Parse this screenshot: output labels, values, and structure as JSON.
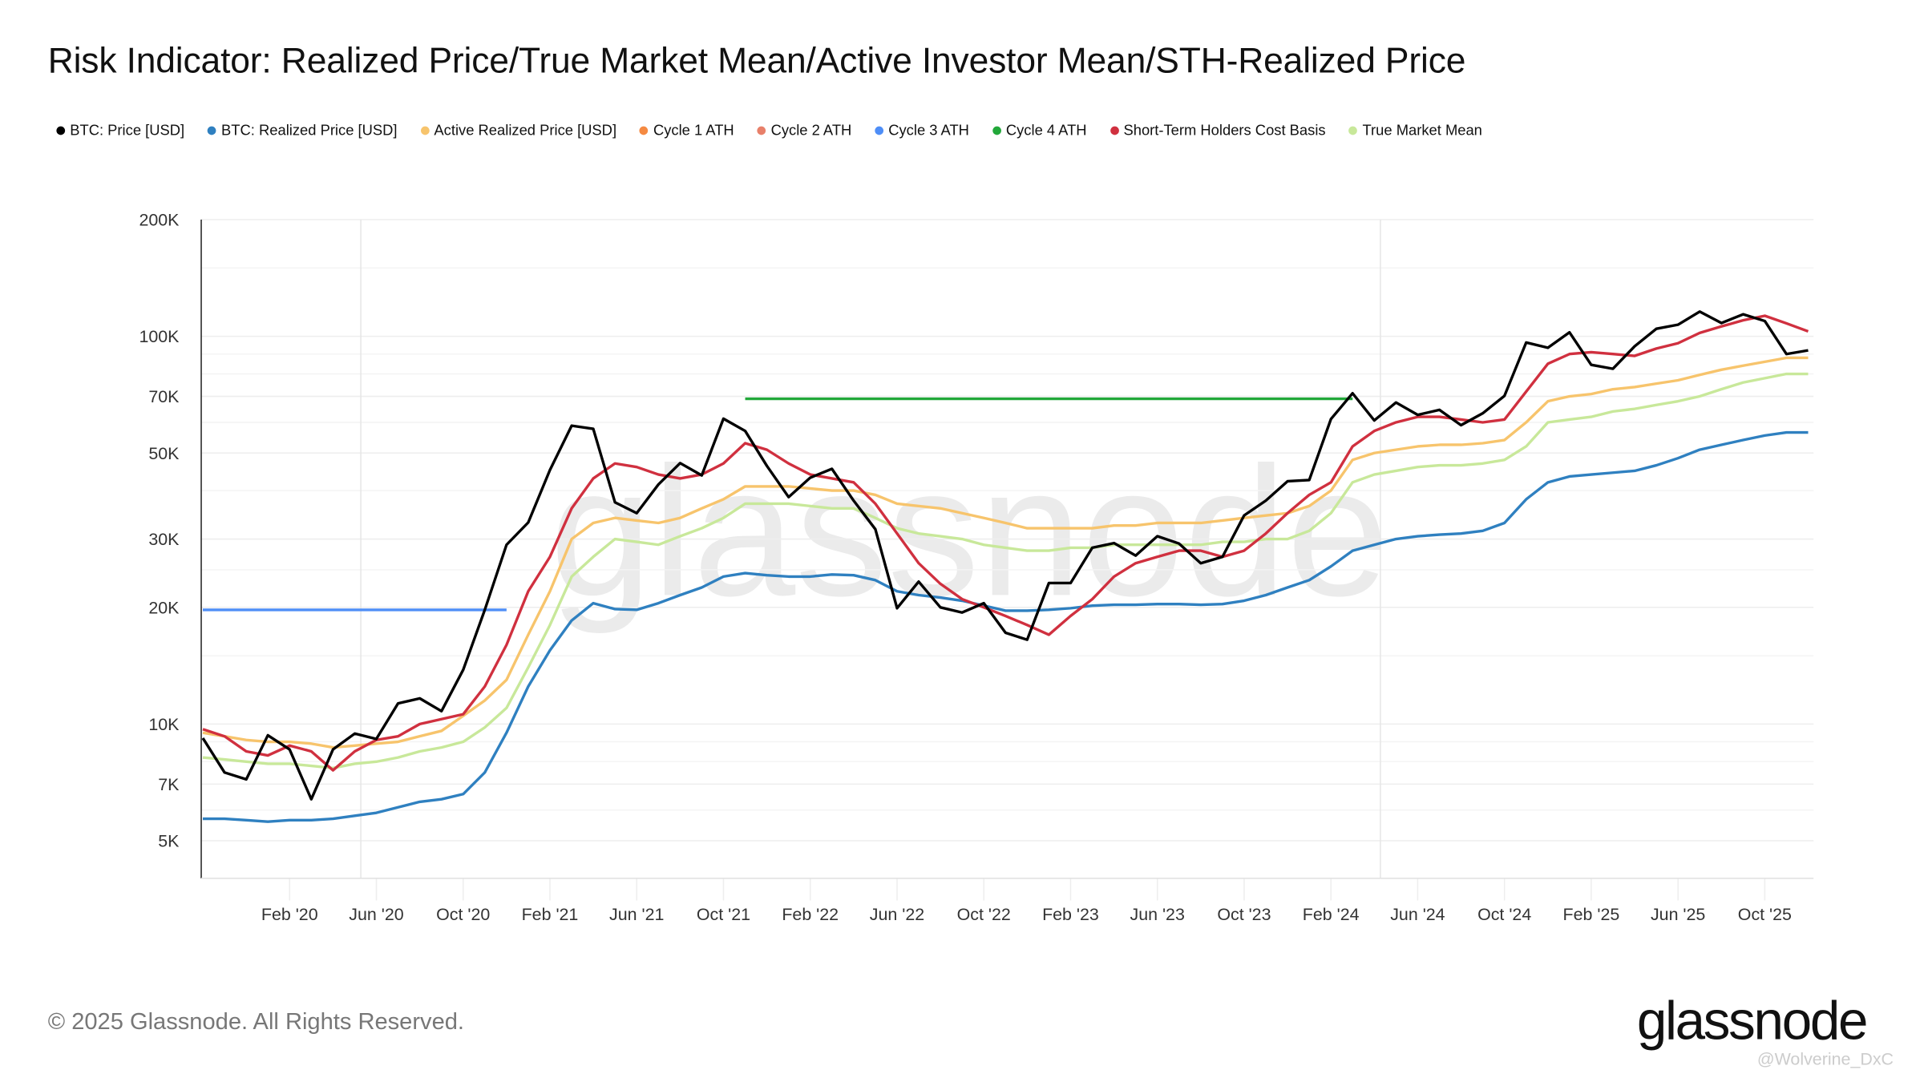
{
  "chart_data": {
    "type": "line",
    "title": "Risk Indicator: Realized Price/True Market Mean/Active Investor Mean/STH-Realized Price",
    "y_scale": "log",
    "ylim": [
      4000,
      200000
    ],
    "xlim": [
      "2019-10",
      "2025-12"
    ],
    "grid": true,
    "legend_position": "top",
    "y_ticks": [
      {
        "v": 200000,
        "label": "200K"
      },
      {
        "v": 100000,
        "label": "100K"
      },
      {
        "v": 70000,
        "label": "70K"
      },
      {
        "v": 50000,
        "label": "50K"
      },
      {
        "v": 30000,
        "label": "30K"
      },
      {
        "v": 20000,
        "label": "20K"
      },
      {
        "v": 10000,
        "label": "10K"
      },
      {
        "v": 7000,
        "label": "7K"
      },
      {
        "v": 5000,
        "label": "5K"
      }
    ],
    "x_ticks": [
      {
        "d": "2020-02",
        "label": "Feb '20"
      },
      {
        "d": "2020-06",
        "label": "Jun '20"
      },
      {
        "d": "2020-10",
        "label": "Oct '20"
      },
      {
        "d": "2021-02",
        "label": "Feb '21"
      },
      {
        "d": "2021-06",
        "label": "Jun '21"
      },
      {
        "d": "2021-10",
        "label": "Oct '21"
      },
      {
        "d": "2022-02",
        "label": "Feb '22"
      },
      {
        "d": "2022-06",
        "label": "Jun '22"
      },
      {
        "d": "2022-10",
        "label": "Oct '22"
      },
      {
        "d": "2023-02",
        "label": "Feb '23"
      },
      {
        "d": "2023-06",
        "label": "Jun '23"
      },
      {
        "d": "2023-10",
        "label": "Oct '23"
      },
      {
        "d": "2024-02",
        "label": "Feb '24"
      },
      {
        "d": "2024-06",
        "label": "Jun '24"
      },
      {
        "d": "2024-10",
        "label": "Oct '24"
      },
      {
        "d": "2025-02",
        "label": "Feb '25"
      },
      {
        "d": "2025-06",
        "label": "Jun '25"
      },
      {
        "d": "2025-10",
        "label": "Oct '25"
      }
    ],
    "x_start": "2019-10",
    "series": [
      {
        "name": "BTC: Price [USD]",
        "color": "#000000",
        "values": [
          9200,
          7500,
          7200,
          9350,
          8600,
          6400,
          8600,
          9450,
          9150,
          11300,
          11650,
          10800,
          13800,
          19700,
          29000,
          33100,
          45200,
          58800,
          57700,
          37300,
          35000,
          41500,
          47100,
          43800,
          61300,
          57000,
          46300,
          38500,
          43200,
          45500,
          37700,
          31800,
          19900,
          23300,
          20000,
          19400,
          20500,
          17200,
          16500,
          23100,
          23100,
          28500,
          29300,
          27200,
          30500,
          29200,
          26000,
          27000,
          34500,
          37700,
          42300,
          42600,
          61200,
          71300,
          60700,
          67500,
          62700,
          64600,
          59000,
          63300,
          70200,
          96400,
          93400,
          102400,
          84400,
          82500,
          94200,
          104600,
          107100,
          115800,
          108200,
          114000,
          109500,
          90000,
          92000
        ]
      },
      {
        "name": "BTC: Realized Price [USD]",
        "color": "#2f80c0",
        "values": [
          5700,
          5700,
          5650,
          5600,
          5650,
          5650,
          5700,
          5800,
          5900,
          6100,
          6300,
          6400,
          6600,
          7500,
          9500,
          12500,
          15500,
          18500,
          20500,
          19800,
          19700,
          20500,
          21500,
          22500,
          24000,
          24500,
          24200,
          24000,
          24000,
          24300,
          24200,
          23500,
          22000,
          21500,
          21200,
          20800,
          20200,
          19600,
          19600,
          19700,
          19900,
          20200,
          20300,
          20300,
          20400,
          20400,
          20300,
          20400,
          20800,
          21500,
          22500,
          23500,
          25500,
          28000,
          29000,
          30000,
          30500,
          30800,
          31000,
          31500,
          33000,
          38000,
          42000,
          43500,
          44000,
          44500,
          45000,
          46500,
          48500,
          51000,
          52500,
          54000,
          55500,
          56500,
          56500
        ]
      },
      {
        "name": "Active Realized Price [USD]",
        "color": "#f7c46c",
        "values": [
          9500,
          9300,
          9100,
          9000,
          9000,
          8900,
          8700,
          8800,
          8900,
          9000,
          9300,
          9600,
          10500,
          11500,
          13000,
          17000,
          22000,
          30000,
          33000,
          34000,
          33500,
          33000,
          34000,
          36000,
          38000,
          41000,
          41000,
          41000,
          40500,
          40000,
          40000,
          39000,
          37000,
          36500,
          36000,
          35000,
          34000,
          33000,
          32000,
          32000,
          32000,
          32000,
          32500,
          32500,
          33000,
          33000,
          33000,
          33500,
          34000,
          34500,
          35000,
          36500,
          40000,
          48000,
          50000,
          51000,
          52000,
          52500,
          52500,
          53000,
          54000,
          60000,
          68000,
          70000,
          71000,
          73000,
          74000,
          75500,
          77000,
          79500,
          82000,
          84000,
          86000,
          88000,
          88000
        ]
      },
      {
        "name": "Cycle 1 ATH",
        "color": "#f58a42",
        "values": []
      },
      {
        "name": "Cycle 2 ATH",
        "color": "#e8806a",
        "values": []
      },
      {
        "name": "Cycle 3 ATH",
        "color": "#4e8ef7",
        "segment": {
          "from": "2019-10",
          "to": "2020-12",
          "value": 19700
        }
      },
      {
        "name": "Cycle 4 ATH",
        "color": "#22a83a",
        "segment": {
          "from": "2021-11",
          "to": "2024-03",
          "value": 69000
        }
      },
      {
        "name": "Short-Term Holders Cost Basis",
        "color": "#d0303f",
        "values": [
          9700,
          9300,
          8500,
          8300,
          8800,
          8500,
          7600,
          8500,
          9100,
          9300,
          10000,
          10300,
          10600,
          12500,
          16000,
          22000,
          27000,
          36000,
          43000,
          47000,
          46000,
          44000,
          43000,
          44000,
          47000,
          53000,
          51000,
          47000,
          44000,
          43000,
          42000,
          37000,
          31000,
          26000,
          23000,
          21000,
          20000,
          19000,
          18000,
          17000,
          19000,
          21000,
          24000,
          26000,
          27000,
          28000,
          28000,
          27000,
          28000,
          31000,
          35000,
          39000,
          42000,
          52000,
          57000,
          60000,
          62000,
          62000,
          61000,
          60000,
          61000,
          72000,
          85000,
          90000,
          91000,
          90000,
          89000,
          93000,
          96000,
          102000,
          106000,
          110000,
          113000,
          108000,
          103000
        ]
      },
      {
        "name": "True Market Mean",
        "color": "#c8e89a",
        "values": [
          8200,
          8100,
          8000,
          7900,
          7900,
          7800,
          7700,
          7900,
          8000,
          8200,
          8500,
          8700,
          9000,
          9800,
          11000,
          14000,
          18000,
          24000,
          27000,
          30000,
          29500,
          29000,
          30500,
          32000,
          34000,
          37000,
          37000,
          37000,
          36500,
          36000,
          36000,
          34000,
          32000,
          31000,
          30500,
          30000,
          29000,
          28500,
          28000,
          28000,
          28500,
          28500,
          29000,
          29000,
          29000,
          29000,
          29000,
          29500,
          29500,
          30000,
          30000,
          31500,
          35000,
          42000,
          44000,
          45000,
          46000,
          46500,
          46500,
          47000,
          48000,
          52000,
          60000,
          61000,
          62000,
          64000,
          65000,
          66500,
          68000,
          70000,
          73000,
          76000,
          78000,
          80000,
          80000
        ]
      }
    ],
    "halving_markers": [
      "2020-05",
      "2024-04"
    ],
    "watermark": "glassnode"
  },
  "footer": {
    "copyright": "© 2025 Glassnode. All Rights Reserved.",
    "logo": "glassnode",
    "overlay_handle": "@Wolverine_DxC"
  }
}
